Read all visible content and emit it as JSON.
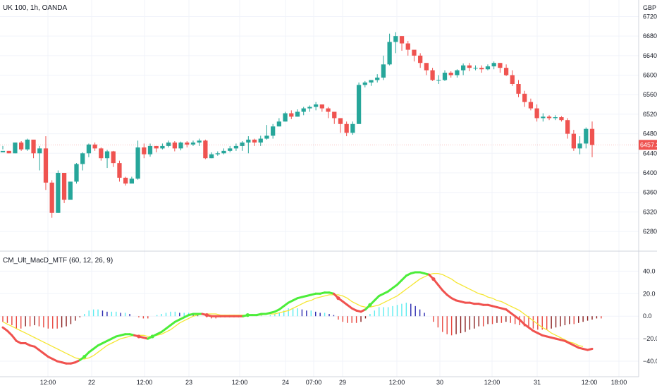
{
  "header": {
    "symbol_title": "UK 100, 1h, OANDA",
    "currency": "GBP"
  },
  "indicator": {
    "title": "CM_Ult_MacD_MTF (60, 12, 26, 9)"
  },
  "price_axis": {
    "ticks": [
      "6720.0",
      "6680.0",
      "6640.0",
      "6600.0",
      "6560.0",
      "6520.0",
      "6480.0",
      "6440.0",
      "6400.0",
      "6360.0",
      "6320.0",
      "6280.0"
    ],
    "current_price_label": "6457.3"
  },
  "macd_axis": {
    "ticks": [
      "40.0",
      "20.0",
      "0.0",
      "−20.0",
      "−40.0"
    ]
  },
  "time_axis": {
    "ticks": [
      "12:00",
      "22",
      "12:00",
      "23",
      "12:00",
      "24",
      "07:00",
      "29",
      "12:00",
      "30",
      "12:00",
      "31",
      "12:00",
      "18:00"
    ]
  },
  "colors": {
    "up_candle": "#26a69a",
    "down_candle": "#ef5350",
    "macd_up": "#4ced3a",
    "macd_down": "#f0524f",
    "signal": "#f5e632",
    "hist_pos_rising": "#5cecf0",
    "hist_pos_falling": "#2b2bb0",
    "hist_neg_falling": "#e8473f",
    "hist_neg_rising": "#8a1f1f"
  },
  "chart_data": [
    {
      "type": "candlestick",
      "title": "UK 100, 1h, OANDA",
      "ylim": [
        6270,
        6725
      ],
      "current_price": 6457.3,
      "closes": [
        6445,
        6440,
        6462,
        6448,
        6468,
        6440,
        6450,
        6380,
        6318,
        6400,
        6345,
        6382,
        6418,
        6440,
        6458,
        6450,
        6430,
        6444,
        6420,
        6390,
        6378,
        6388,
        6452,
        6438,
        6455,
        6450,
        6455,
        6462,
        6450,
        6462,
        6458,
        6462,
        6466,
        6430,
        6438,
        6440,
        6445,
        6450,
        6455,
        6462,
        6468,
        6462,
        6470,
        6476,
        6495,
        6505,
        6522,
        6515,
        6525,
        6532,
        6535,
        6540,
        6532,
        6525,
        6512,
        6500,
        6482,
        6500,
        6580,
        6585,
        6590,
        6595,
        6622,
        6668,
        6680,
        6665,
        6652,
        6640,
        6625,
        6610,
        6590,
        6590,
        6605,
        6600,
        6610,
        6620,
        6615,
        6615,
        6612,
        6618,
        6625,
        6615,
        6600,
        6582,
        6562,
        6545,
        6532,
        6512,
        6515,
        6512,
        6514,
        6508,
        6480,
        6450,
        6460,
        6490,
        6457
      ],
      "wicks": [
        [
          6448,
          6455
        ],
        [
          6445,
          6440
        ],
        [
          6462,
          6440
        ],
        [
          6465,
          6445
        ],
        [
          6470,
          6445
        ],
        [
          6462,
          6430
        ],
        [
          6455,
          6405
        ],
        [
          6475,
          6365
        ],
        [
          6385,
          6308
        ],
        [
          6405,
          6318
        ],
        [
          6400,
          6338
        ],
        [
          6382,
          6350
        ],
        [
          6420,
          6378
        ],
        [
          6442,
          6405
        ],
        [
          6460,
          6432
        ],
        [
          6462,
          6445
        ],
        [
          6452,
          6425
        ],
        [
          6447,
          6410
        ],
        [
          6445,
          6412
        ],
        [
          6425,
          6382
        ],
        [
          6392,
          6374
        ],
        [
          6392,
          6380
        ],
        [
          6466,
          6386
        ],
        [
          6460,
          6430
        ],
        [
          6460,
          6433
        ],
        [
          6455,
          6442
        ],
        [
          6460,
          6448
        ],
        [
          6466,
          6452
        ],
        [
          6465,
          6444
        ],
        [
          6464,
          6446
        ],
        [
          6465,
          6452
        ],
        [
          6466,
          6455
        ],
        [
          6470,
          6455
        ],
        [
          6468,
          6428
        ],
        [
          6442,
          6430
        ],
        [
          6444,
          6435
        ],
        [
          6450,
          6438
        ],
        [
          6455,
          6442
        ],
        [
          6460,
          6445
        ],
        [
          6465,
          6445
        ],
        [
          6475,
          6440
        ],
        [
          6470,
          6455
        ],
        [
          6476,
          6455
        ],
        [
          6498,
          6468
        ],
        [
          6500,
          6470
        ],
        [
          6512,
          6495
        ],
        [
          6525,
          6505
        ],
        [
          6528,
          6510
        ],
        [
          6530,
          6515
        ],
        [
          6535,
          6518
        ],
        [
          6538,
          6525
        ],
        [
          6545,
          6528
        ],
        [
          6540,
          6525
        ],
        [
          6535,
          6512
        ],
        [
          6522,
          6500
        ],
        [
          6512,
          6482
        ],
        [
          6505,
          6475
        ],
        [
          6505,
          6478
        ],
        [
          6585,
          6500
        ],
        [
          6588,
          6575
        ],
        [
          6590,
          6578
        ],
        [
          6602,
          6585
        ],
        [
          6640,
          6590
        ],
        [
          6685,
          6620
        ],
        [
          6688,
          6645
        ],
        [
          6680,
          6650
        ],
        [
          6670,
          6640
        ],
        [
          6650,
          6628
        ],
        [
          6645,
          6615
        ],
        [
          6625,
          6600
        ],
        [
          6615,
          6588
        ],
        [
          6600,
          6582
        ],
        [
          6610,
          6588
        ],
        [
          6608,
          6595
        ],
        [
          6612,
          6595
        ],
        [
          6624,
          6600
        ],
        [
          6625,
          6608
        ],
        [
          6620,
          6610
        ],
        [
          6620,
          6605
        ],
        [
          6622,
          6610
        ],
        [
          6628,
          6612
        ],
        [
          6625,
          6605
        ],
        [
          6622,
          6598
        ],
        [
          6610,
          6578
        ],
        [
          6590,
          6555
        ],
        [
          6568,
          6535
        ],
        [
          6552,
          6528
        ],
        [
          6540,
          6505
        ],
        [
          6522,
          6505
        ],
        [
          6518,
          6508
        ],
        [
          6518,
          6508
        ],
        [
          6516,
          6505
        ],
        [
          6512,
          6470
        ],
        [
          6488,
          6445
        ],
        [
          6475,
          6438
        ],
        [
          6493,
          6450
        ],
        [
          6505,
          6432
        ]
      ]
    },
    {
      "type": "line",
      "title": "CM_Ult_MacD_MTF (60, 12, 26, 9)",
      "ylim": [
        -50,
        44
      ],
      "series": [
        {
          "role": "macd",
          "values": [
            -10,
            -13,
            -17,
            -22,
            -24,
            -24,
            -26,
            -27,
            -30,
            -33,
            -36,
            -38,
            -40,
            -41,
            -42,
            -42,
            -41,
            -39,
            -36,
            -32,
            -29,
            -26,
            -24,
            -22,
            -20,
            -18,
            -17,
            -16,
            -16,
            -17,
            -18,
            -19,
            -20,
            -18,
            -16,
            -14,
            -11,
            -8,
            -5,
            -3,
            -1,
            1,
            2,
            2,
            2,
            1,
            0,
            0,
            0,
            0,
            0,
            0,
            0,
            0,
            1,
            1,
            1,
            2,
            2,
            3,
            4,
            6,
            9,
            12,
            14,
            16,
            17,
            18,
            19,
            20,
            20,
            21,
            21,
            20,
            16,
            13,
            10,
            7,
            5,
            4,
            6,
            10,
            14,
            18,
            20,
            22,
            25,
            28,
            32,
            36,
            38,
            39,
            39,
            38,
            37,
            33,
            28,
            23,
            19,
            16,
            14,
            13,
            12,
            12,
            11,
            11,
            10,
            10,
            9,
            8,
            7,
            6,
            3,
            0,
            -3,
            -7,
            -10,
            -13,
            -15,
            -17,
            -18,
            -19,
            -20,
            -21,
            -22,
            -24,
            -26,
            -28,
            -29,
            -30,
            -29
          ]
        },
        {
          "role": "signal",
          "values": [
            -5,
            -7,
            -9,
            -11,
            -13,
            -15,
            -17,
            -19,
            -21,
            -23,
            -25,
            -27,
            -29,
            -31,
            -33,
            -35,
            -37,
            -38,
            -38,
            -37,
            -35,
            -32,
            -29,
            -26,
            -24,
            -22,
            -20,
            -19,
            -18,
            -17,
            -17,
            -17,
            -18,
            -18,
            -17,
            -16,
            -14,
            -12,
            -9,
            -6,
            -4,
            -2,
            0,
            1,
            2,
            2,
            2,
            2,
            1,
            1,
            1,
            1,
            1,
            1,
            1,
            1,
            1,
            1,
            2,
            2,
            2,
            3,
            4,
            5,
            7,
            9,
            11,
            13,
            14,
            16,
            17,
            18,
            19,
            19,
            19,
            18,
            16,
            13,
            11,
            9,
            8,
            8,
            9,
            10,
            12,
            14,
            16,
            18,
            21,
            24,
            27,
            30,
            33,
            35,
            37,
            38,
            38,
            37,
            35,
            33,
            30,
            28,
            26,
            24,
            22,
            20,
            19,
            17,
            16,
            14,
            13,
            11,
            9,
            7,
            5,
            2,
            -1,
            -4,
            -7,
            -10,
            -12,
            -15,
            -17,
            -19,
            -21,
            -23,
            -24,
            -26,
            -27
          ]
        },
        {
          "role": "histogram",
          "values": [
            -5,
            -6,
            -8,
            -11,
            -11,
            -9,
            -9,
            -8,
            -9,
            -10,
            -11,
            -11,
            -11,
            -10,
            -9,
            -7,
            -4,
            -1,
            2,
            5,
            6,
            6,
            5,
            4,
            4,
            4,
            3,
            3,
            2,
            0,
            -1,
            -2,
            -2,
            0,
            1,
            2,
            3,
            4,
            4,
            3,
            3,
            3,
            2,
            1,
            0,
            -1,
            -2,
            -2,
            -1,
            -1,
            -1,
            -1,
            -1,
            -1,
            0,
            0,
            0,
            1,
            0,
            1,
            2,
            3,
            5,
            7,
            7,
            7,
            6,
            5,
            5,
            4,
            3,
            3,
            2,
            1,
            -3,
            -5,
            -6,
            -6,
            -6,
            -5,
            -2,
            2,
            5,
            8,
            8,
            8,
            9,
            10,
            11,
            12,
            11,
            9,
            6,
            3,
            0,
            -5,
            -10,
            -14,
            -16,
            -17,
            -16,
            -15,
            -14,
            -12,
            -11,
            -9,
            -9,
            -7,
            -7,
            -6,
            -6,
            -5,
            -6,
            -7,
            -8,
            -9,
            -9,
            -11,
            -12,
            -12,
            -12,
            -11,
            -10,
            -9,
            -8,
            -7,
            -7,
            -6,
            -5,
            -4,
            -3,
            -2,
            -2
          ]
        }
      ]
    }
  ]
}
